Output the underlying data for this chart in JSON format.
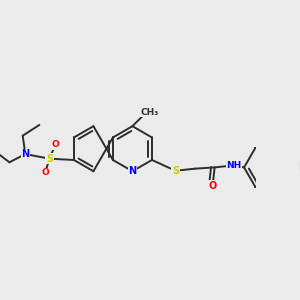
{
  "bg_color": "#ebebeb",
  "bond_color": "#2d2d2d",
  "atom_colors": {
    "N": "#0000ff",
    "S": "#cccc00",
    "O": "#ff0000",
    "F": "#cc44cc",
    "H": "#888888",
    "C": "#2d2d2d"
  },
  "bond_width": 1.4,
  "font_size": 7.5,
  "ring_r": 0.105
}
